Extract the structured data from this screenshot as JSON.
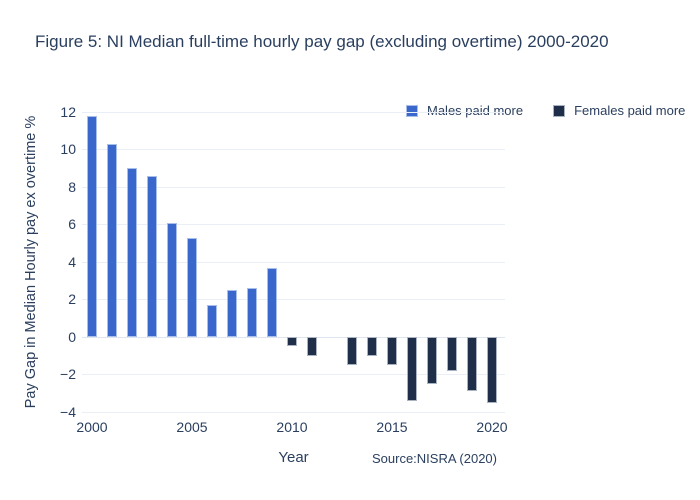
{
  "chart_data": {
    "type": "bar",
    "title": "Figure 5: NI Median full-time hourly pay gap (excluding overtime) 2000-2020",
    "xlabel": "Year",
    "ylabel": "Pay Gap in Median Hourly pay ex overtime %",
    "annotation": "Source:NISRA (2020)",
    "x": [
      2000,
      2001,
      2002,
      2003,
      2004,
      2005,
      2006,
      2007,
      2008,
      2009,
      2010,
      2011,
      2012,
      2013,
      2014,
      2015,
      2016,
      2017,
      2018,
      2019,
      2020
    ],
    "values": [
      11.8,
      10.3,
      9.0,
      8.6,
      6.1,
      5.3,
      1.7,
      2.5,
      2.6,
      3.7,
      -0.5,
      -1.0,
      0.0,
      -1.5,
      -1.0,
      -1.5,
      -3.4,
      -2.5,
      -1.8,
      -2.9,
      -3.5
    ],
    "series": [
      {
        "name": "Males paid more",
        "rule": "positive values",
        "color": "#3a67cb"
      },
      {
        "name": "Females paid more",
        "rule": "negative values",
        "color": "#1f2f4a"
      }
    ],
    "ylim": [
      -4,
      12
    ],
    "yticks": [
      12,
      10,
      8,
      6,
      4,
      2,
      0,
      -2,
      -4
    ],
    "xticks": [
      2000,
      2005,
      2010,
      2015,
      2020
    ],
    "grid": true,
    "legend_position": "top-right"
  },
  "colors": {
    "males_fill": "#3a67cb",
    "males_border": "#a9bfe9",
    "females_fill": "#1f2f4a",
    "females_border": "#a9b3c2",
    "grid": "#e9eef7",
    "zero_line": "#dce5f0",
    "text": "#2a3f5f",
    "background": "#ffffff"
  }
}
